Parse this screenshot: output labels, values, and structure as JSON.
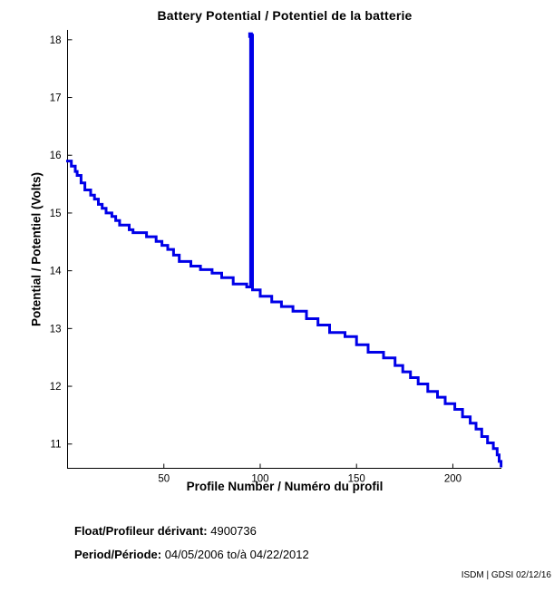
{
  "page": {
    "background": "#ffffff",
    "text_color": "#000000"
  },
  "chart_data": {
    "type": "line",
    "subtype": "step",
    "title": "Battery Potential / Potentiel de la batterie",
    "xlabel": "Profile Number / Numéro du profil",
    "ylabel": "Potential / Potentiel (Volts)",
    "xlim": [
      0,
      225.2
    ],
    "ylim": [
      10.58,
      18.17
    ],
    "xticks": [
      50,
      100,
      150,
      200
    ],
    "yticks": [
      11,
      12,
      13,
      14,
      15,
      16,
      17,
      18
    ],
    "grid": false,
    "legend": "none",
    "line_color": "#0000E8",
    "axis_color": "#000000",
    "spike": {
      "x": 95,
      "y": 18.08
    },
    "series": [
      {
        "name": "battery-potential",
        "points": [
          [
            0,
            15.9
          ],
          [
            2,
            15.81
          ],
          [
            4,
            15.72
          ],
          [
            5,
            15.65
          ],
          [
            7,
            15.52
          ],
          [
            9,
            15.4
          ],
          [
            12,
            15.31
          ],
          [
            14,
            15.24
          ],
          [
            16,
            15.15
          ],
          [
            18,
            15.08
          ],
          [
            20,
            15.0
          ],
          [
            23,
            14.94
          ],
          [
            25,
            14.87
          ],
          [
            27,
            14.79
          ],
          [
            32,
            14.71
          ],
          [
            34,
            14.66
          ],
          [
            41,
            14.59
          ],
          [
            46,
            14.51
          ],
          [
            49,
            14.44
          ],
          [
            52,
            14.37
          ],
          [
            55,
            14.27
          ],
          [
            58,
            14.16
          ],
          [
            64,
            14.08
          ],
          [
            69,
            14.02
          ],
          [
            75,
            13.96
          ],
          [
            80,
            13.88
          ],
          [
            86,
            13.77
          ],
          [
            93,
            13.72
          ],
          [
            95,
            18.08
          ],
          [
            96,
            13.67
          ],
          [
            100,
            13.56
          ],
          [
            106,
            13.46
          ],
          [
            111,
            13.38
          ],
          [
            117,
            13.3
          ],
          [
            124,
            13.17
          ],
          [
            130,
            13.06
          ],
          [
            136,
            12.93
          ],
          [
            144,
            12.86
          ],
          [
            150,
            12.72
          ],
          [
            156,
            12.59
          ],
          [
            164,
            12.49
          ],
          [
            170,
            12.36
          ],
          [
            174,
            12.25
          ],
          [
            178,
            12.15
          ],
          [
            182,
            12.04
          ],
          [
            187,
            11.91
          ],
          [
            192,
            11.81
          ],
          [
            196,
            11.7
          ],
          [
            201,
            11.6
          ],
          [
            205,
            11.47
          ],
          [
            209,
            11.36
          ],
          [
            212,
            11.26
          ],
          [
            215,
            11.13
          ],
          [
            218,
            11.02
          ],
          [
            221,
            10.92
          ],
          [
            223,
            10.81
          ],
          [
            224,
            10.7
          ],
          [
            225,
            10.62
          ]
        ]
      }
    ]
  },
  "annotations": {
    "float_label": "Float/Profileur dérivant:",
    "float_value": "4900736",
    "period_label": "Period/Période:",
    "period_value": "04/05/2006 to/à 04/22/2012",
    "credit": "ISDM | GDSI 02/12/16"
  }
}
